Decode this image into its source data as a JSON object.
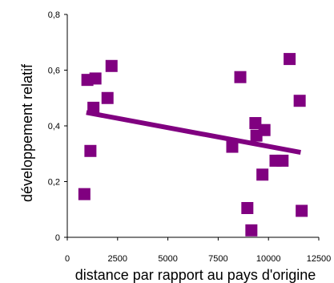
{
  "chart_data": {
    "type": "scatter",
    "title": "",
    "xlabel": "distance par rapport au pays d'origine",
    "ylabel": "développement relatif",
    "xlim": [
      0,
      12500
    ],
    "ylim": [
      0,
      0.8
    ],
    "x_ticks": [
      {
        "value": 0,
        "label": "0"
      },
      {
        "value": 2500,
        "label": "2500"
      },
      {
        "value": 5000,
        "label": "5000"
      },
      {
        "value": 7500,
        "label": "7500"
      },
      {
        "value": 10000,
        "label": "10000"
      },
      {
        "value": 12500,
        "label": "12500"
      }
    ],
    "y_ticks": [
      {
        "value": 0,
        "label": "0"
      },
      {
        "value": 0.2,
        "label": "0,2"
      },
      {
        "value": 0.4,
        "label": "0,4"
      },
      {
        "value": 0.6,
        "label": "0,6"
      },
      {
        "value": 0.8,
        "label": "0,8"
      }
    ],
    "grid": false,
    "marker": "square",
    "color": "#800080",
    "series": [
      {
        "points": [
          {
            "x": 850,
            "y": 0.155
          },
          {
            "x": 1000,
            "y": 0.565
          },
          {
            "x": 1150,
            "y": 0.31
          },
          {
            "x": 1300,
            "y": 0.465
          },
          {
            "x": 1400,
            "y": 0.57
          },
          {
            "x": 2000,
            "y": 0.5
          },
          {
            "x": 2200,
            "y": 0.615
          },
          {
            "x": 8200,
            "y": 0.325
          },
          {
            "x": 8600,
            "y": 0.575
          },
          {
            "x": 8950,
            "y": 0.105
          },
          {
            "x": 9150,
            "y": 0.025
          },
          {
            "x": 9350,
            "y": 0.41
          },
          {
            "x": 9400,
            "y": 0.365
          },
          {
            "x": 9700,
            "y": 0.225
          },
          {
            "x": 9800,
            "y": 0.385
          },
          {
            "x": 10350,
            "y": 0.275
          },
          {
            "x": 10700,
            "y": 0.275
          },
          {
            "x": 11050,
            "y": 0.64
          },
          {
            "x": 11550,
            "y": 0.49
          },
          {
            "x": 11650,
            "y": 0.095
          }
        ]
      }
    ],
    "trendline": {
      "x": [
        950,
        11600
      ],
      "y": [
        0.448,
        0.305
      ]
    }
  }
}
